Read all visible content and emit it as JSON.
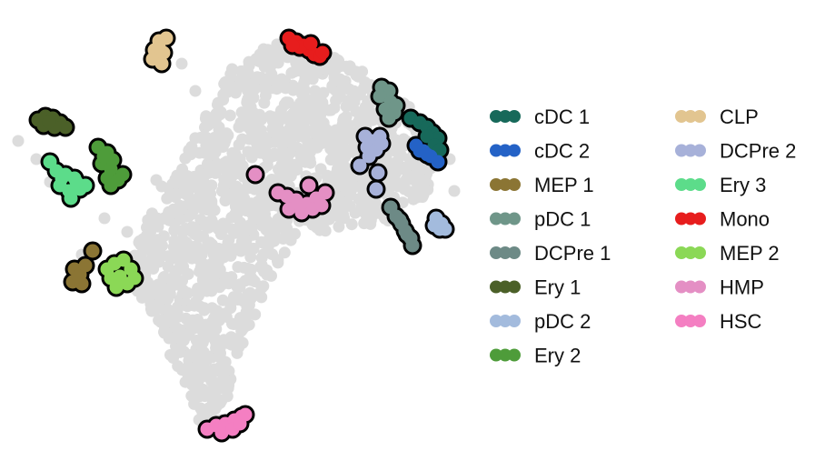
{
  "chart_data": {
    "type": "scatter",
    "title": "",
    "xlabel": "",
    "ylabel": "",
    "axes_visible": false,
    "grid": false,
    "legend_position": "right",
    "legend_columns": 2,
    "background_points_color": "#dcdcdc",
    "highlight_outline_color": "#000000",
    "series": [
      {
        "name": "cDC 1",
        "color": "#17695a"
      },
      {
        "name": "cDC 2",
        "color": "#2462c6"
      },
      {
        "name": "MEP 1",
        "color": "#8b7534"
      },
      {
        "name": "pDC 1",
        "color": "#6f9689"
      },
      {
        "name": "DCPre 1",
        "color": "#6d8a86"
      },
      {
        "name": "Ery 1",
        "color": "#4b6028"
      },
      {
        "name": "pDC 2",
        "color": "#a3bbdd"
      },
      {
        "name": "Ery 2",
        "color": "#4e9c3a"
      },
      {
        "name": "CLP",
        "color": "#e2c590"
      },
      {
        "name": "DCPre 2",
        "color": "#a7b1d9"
      },
      {
        "name": "Ery 3",
        "color": "#5cdc8a"
      },
      {
        "name": "Mono",
        "color": "#e71d1d"
      },
      {
        "name": "MEP 2",
        "color": "#8bd856"
      },
      {
        "name": "HMP",
        "color": "#e48fc4"
      },
      {
        "name": "HSC",
        "color": "#f47fc2"
      }
    ]
  }
}
